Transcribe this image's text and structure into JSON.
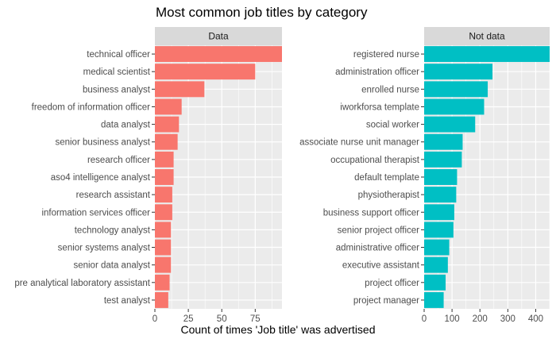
{
  "chart_data": {
    "type": "bar",
    "orientation": "horizontal",
    "title": "Most common job titles by category",
    "xlabel": "Count of times 'Job title' was advertised",
    "ylabel": "",
    "grid": true,
    "legend": "none",
    "panels": [
      {
        "name": "Data",
        "color": "#F8766D",
        "xlim": [
          0,
          95
        ],
        "xticks": [
          0,
          25,
          50,
          75
        ],
        "categories": [
          "technical officer",
          "medical scientist",
          "business analyst",
          "freedom of information officer",
          "data analyst",
          "senior business analyst",
          "research officer",
          "aso4 intelligence analyst",
          "research assistant",
          "information services officer",
          "technology analyst",
          "senior systems analyst",
          "senior data analyst",
          "pre analytical laboratory assistant",
          "test analyst"
        ],
        "values": [
          95,
          75,
          37,
          20,
          18,
          17,
          14,
          14,
          13,
          13,
          12,
          12,
          12,
          11,
          10
        ]
      },
      {
        "name": "Not data",
        "color": "#00BFC4",
        "xlim": [
          0,
          450
        ],
        "xticks": [
          0,
          100,
          200,
          300,
          400
        ],
        "categories": [
          "registered nurse",
          "administration officer",
          "enrolled nurse",
          "iworkforsa template",
          "social worker",
          "associate nurse unit manager",
          "occupational therapist",
          "default template",
          "physiotherapist",
          "business support officer",
          "senior project officer",
          "administrative officer",
          "executive assistant",
          "project officer",
          "project manager"
        ],
        "values": [
          450,
          245,
          228,
          215,
          183,
          138,
          135,
          118,
          115,
          108,
          105,
          90,
          85,
          77,
          70
        ]
      }
    ]
  }
}
